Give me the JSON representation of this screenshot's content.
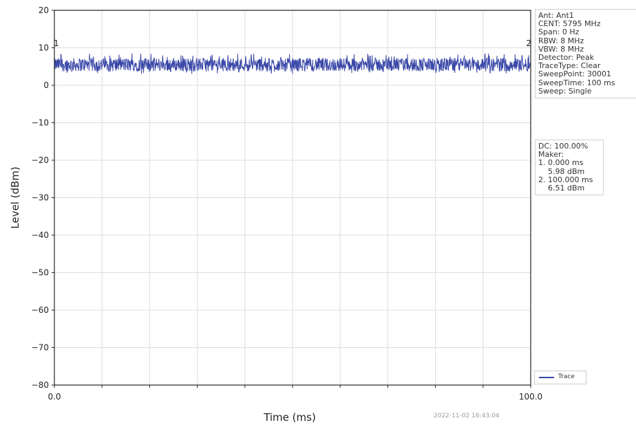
{
  "chart_data": {
    "type": "line",
    "title": "",
    "xlabel": "Time (ms)",
    "ylabel": "Level (dBm)",
    "xlim": [
      0.0,
      100.0
    ],
    "ylim": [
      -80,
      20
    ],
    "x_ticks": [
      0.0,
      100.0
    ],
    "x_tick_labels": [
      "0.0",
      "100.0"
    ],
    "y_ticks": [
      20,
      10,
      0,
      -10,
      -20,
      -30,
      -40,
      -50,
      -60,
      -70,
      -80
    ],
    "y_tick_labels": [
      "20",
      "10",
      "0",
      "−10",
      "−20",
      "−30",
      "−40",
      "−50",
      "−60",
      "−70",
      "−80"
    ],
    "grid": true,
    "legend_position": "bottom-right",
    "series": [
      {
        "name": "Trace",
        "color": "#3a48a8",
        "mean_level": 5.5,
        "min_level": 3.0,
        "max_level": 8.5
      }
    ],
    "markers": [
      {
        "label": "1",
        "x": 0.0,
        "y": 5.98
      },
      {
        "label": "2",
        "x": 100.0,
        "y": 6.51
      }
    ]
  },
  "info_settings": [
    "Ant: Ant1",
    "CENT: 5795 MHz",
    "Span: 0 Hz",
    "RBW: 8 MHz",
    "VBW: 8 MHz",
    "Detector: Peak",
    "TraceType: Clear",
    "SweepPoint: 30001",
    "SweepTime: 100 ms",
    "Sweep: Single"
  ],
  "info_markers": [
    "DC: 100.00%",
    "Maker:",
    "1. 0.000 ms",
    "    5.98 dBm",
    "2. 100.000 ms",
    "    6.51 dBm"
  ],
  "timestamp": "2022-11-02 16:43:04"
}
